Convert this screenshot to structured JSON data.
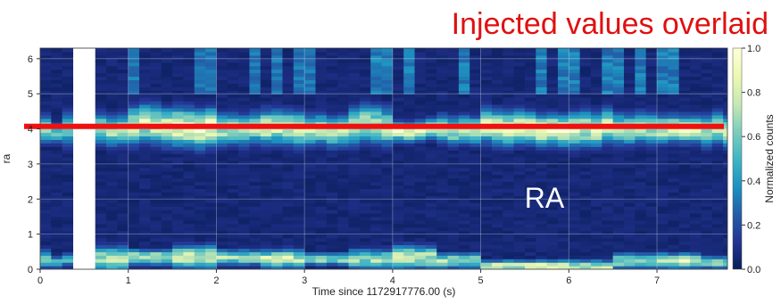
{
  "chart_data": {
    "type": "heatmap",
    "overlay_title": "Injected values overlaid",
    "panel_label": "RA",
    "xlabel": "Time since 1172917776.00 (s)",
    "ylabel": "ra",
    "colorbar_label": "Normalized counts",
    "xlim": [
      0,
      7.8
    ],
    "ylim": [
      0,
      6.3
    ],
    "x_ticks": [
      "0",
      "1",
      "2",
      "3",
      "4",
      "5",
      "6",
      "7"
    ],
    "y_ticks": [
      "0",
      "1",
      "2",
      "3",
      "4",
      "5",
      "6"
    ],
    "colorbar_ticks": [
      "0.0",
      "0.2",
      "0.4",
      "0.6",
      "0.8",
      "1.0"
    ],
    "colorbar_range": [
      0.0,
      1.0
    ],
    "colormap": "YlGnBu",
    "grid": true,
    "injected_value": 4.07,
    "injected_line_color": "#ee1111",
    "title_color": "#e01010",
    "panel_label_color": "#ffffff",
    "missing_data_x": [
      0.375,
      0.625
    ],
    "bins_per_second": 8,
    "bright_bands": [
      {
        "x": 0.0,
        "lo": 3.6,
        "hi": 4.3,
        "lo2": 0.1,
        "hi2": 0.5,
        "peak": 0.7
      },
      {
        "x": 0.125,
        "lo": 3.7,
        "hi": 4.2,
        "lo2": 0.1,
        "hi2": 0.3,
        "peak": 0.6
      },
      {
        "x": 0.25,
        "lo": 3.5,
        "hi": 4.5,
        "lo2": 0.2,
        "hi2": 0.4,
        "peak": 0.6
      },
      {
        "x": 0.625,
        "lo": 3.6,
        "hi": 4.4,
        "lo2": 0.0,
        "hi2": 0.6,
        "peak": 0.8
      },
      {
        "x": 1.0,
        "lo": 3.6,
        "hi": 4.6,
        "lo2": 0.2,
        "hi2": 0.5,
        "peak": 0.9
      },
      {
        "x": 1.5,
        "lo": 3.5,
        "hi": 4.5,
        "lo2": 0.1,
        "hi2": 0.6,
        "peak": 1.0
      },
      {
        "x": 2.0,
        "lo": 3.6,
        "hi": 4.4,
        "lo2": 0.2,
        "hi2": 0.5,
        "peak": 0.8
      },
      {
        "x": 2.5,
        "lo": 3.6,
        "hi": 4.5,
        "lo2": 0.1,
        "hi2": 0.5,
        "peak": 0.9
      },
      {
        "x": 3.0,
        "lo": 3.6,
        "hi": 4.4,
        "lo2": 0.2,
        "hi2": 0.4,
        "peak": 0.8
      },
      {
        "x": 3.5,
        "lo": 3.6,
        "hi": 4.6,
        "lo2": 0.1,
        "hi2": 0.5,
        "peak": 0.8
      },
      {
        "x": 4.0,
        "lo": 3.7,
        "hi": 4.2,
        "lo2": 0.1,
        "hi2": 0.6,
        "peak": 0.9
      },
      {
        "x": 4.5,
        "lo": 3.6,
        "hi": 4.3,
        "lo2": 0.1,
        "hi2": 0.4,
        "peak": 0.8
      },
      {
        "x": 5.0,
        "lo": 3.6,
        "hi": 4.5,
        "lo2": 0.0,
        "hi2": 0.2,
        "peak": 0.9
      },
      {
        "x": 5.5,
        "lo": 3.6,
        "hi": 4.4,
        "lo2": 0.0,
        "hi2": 0.2,
        "peak": 1.0
      },
      {
        "x": 6.0,
        "lo": 3.6,
        "hi": 4.5,
        "lo2": 0.0,
        "hi2": 0.2,
        "peak": 0.9
      },
      {
        "x": 6.5,
        "lo": 3.6,
        "hi": 4.4,
        "lo2": 0.1,
        "hi2": 0.4,
        "peak": 0.8
      },
      {
        "x": 7.0,
        "lo": 3.7,
        "hi": 4.4,
        "lo2": 0.1,
        "hi2": 0.4,
        "peak": 0.9
      },
      {
        "x": 7.5,
        "lo": 3.6,
        "hi": 4.4,
        "lo2": 0.1,
        "hi2": 0.3,
        "peak": 0.8
      }
    ]
  }
}
